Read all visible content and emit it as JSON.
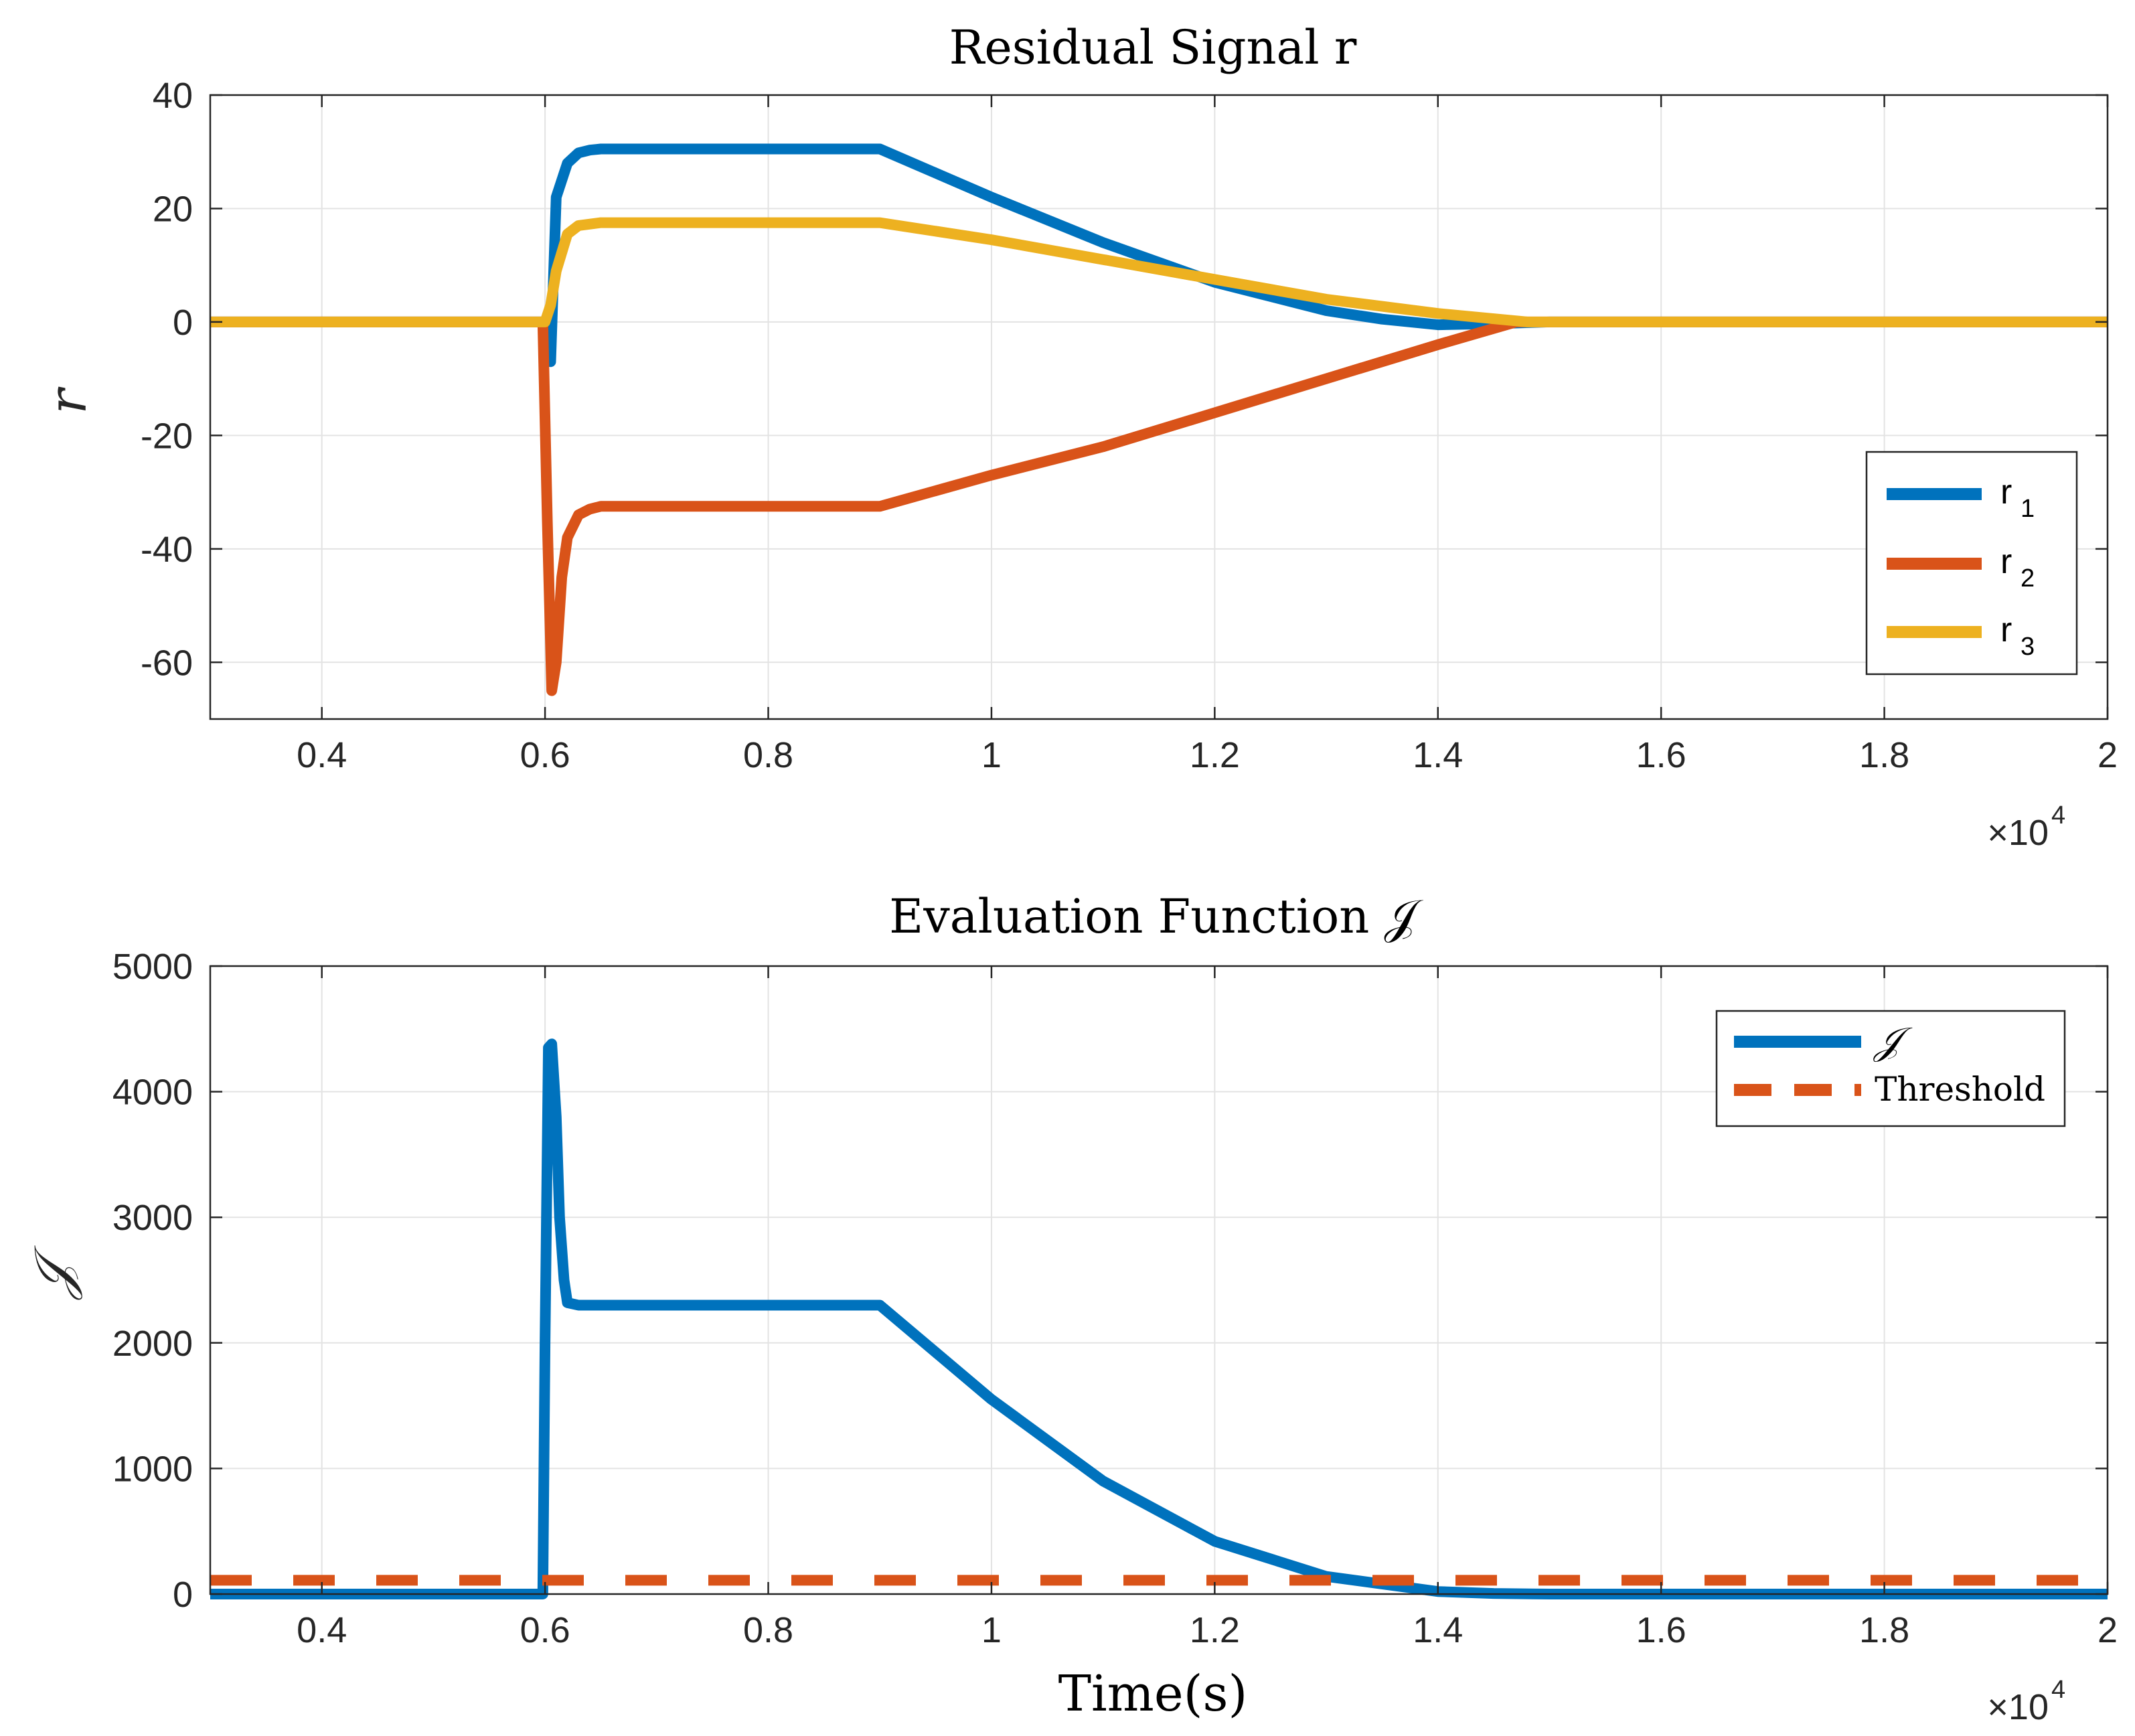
{
  "colors": {
    "blue": "#0072BD",
    "orange": "#D95319",
    "yellow": "#EDB120",
    "axis": "#262626",
    "grid": "#E3E3E3"
  },
  "chart_data": [
    {
      "type": "line",
      "title": "Residual Signal r",
      "xlabel": "",
      "ylabel": "r",
      "x_exponent_label": "×10",
      "x_exponent_power": "4",
      "xlim": [
        0.3,
        2.0
      ],
      "ylim": [
        -70,
        40
      ],
      "xticks": [
        0.4,
        0.6,
        0.8,
        1.0,
        1.2,
        1.4,
        1.6,
        1.8,
        2.0
      ],
      "xtick_labels": [
        "0.4",
        "0.6",
        "0.8",
        "1",
        "1.2",
        "1.4",
        "1.6",
        "1.8",
        "2"
      ],
      "yticks": [
        40,
        20,
        0,
        -20,
        -40,
        -60
      ],
      "ytick_labels": [
        "40",
        "20",
        "0",
        "-20",
        "-40",
        "-60"
      ],
      "grid": true,
      "legend_location": "east",
      "series": [
        {
          "name": "r",
          "subscript": "1",
          "color_key": "blue",
          "x": [
            0.3,
            0.599,
            0.601,
            0.605,
            0.61,
            0.62,
            0.63,
            0.64,
            0.65,
            0.9,
            1.0,
            1.1,
            1.2,
            1.3,
            1.35,
            1.4,
            1.45,
            1.5,
            2.0
          ],
          "y": [
            0,
            0,
            -2,
            -7,
            22,
            28,
            29.8,
            30.3,
            30.5,
            30.5,
            22,
            14,
            7,
            2,
            0.5,
            -0.5,
            -0.3,
            0,
            0
          ]
        },
        {
          "name": "r",
          "subscript": "2",
          "color_key": "orange",
          "x": [
            0.3,
            0.598,
            0.602,
            0.606,
            0.61,
            0.615,
            0.62,
            0.63,
            0.64,
            0.65,
            0.9,
            1.0,
            1.1,
            1.2,
            1.3,
            1.4,
            1.47,
            2.0
          ],
          "y": [
            0,
            0,
            -35,
            -65,
            -60,
            -45,
            -38,
            -34,
            -33,
            -32.5,
            -32.5,
            -27,
            -22,
            -16,
            -10,
            -4,
            0,
            0
          ]
        },
        {
          "name": "r",
          "subscript": "3",
          "color_key": "yellow",
          "x": [
            0.3,
            0.6,
            0.605,
            0.61,
            0.62,
            0.63,
            0.65,
            0.9,
            1.0,
            1.1,
            1.2,
            1.3,
            1.4,
            1.48,
            2.0
          ],
          "y": [
            0,
            0,
            3,
            9,
            15.5,
            17,
            17.5,
            17.5,
            14.5,
            11,
            7.5,
            4,
            1.5,
            0,
            0
          ]
        }
      ]
    },
    {
      "type": "line",
      "title": "Evaluation Function 𝒥",
      "xlabel": "Time(s)",
      "ylabel": "𝒥",
      "x_exponent_label": "×10",
      "x_exponent_power": "4",
      "xlim": [
        0.3,
        2.0
      ],
      "ylim": [
        0,
        5000
      ],
      "xticks": [
        0.4,
        0.6,
        0.8,
        1.0,
        1.2,
        1.4,
        1.6,
        1.8,
        2.0
      ],
      "xtick_labels": [
        "0.4",
        "0.6",
        "0.8",
        "1",
        "1.2",
        "1.4",
        "1.6",
        "1.8",
        "2"
      ],
      "yticks": [
        5000,
        4000,
        3000,
        2000,
        1000,
        0
      ],
      "ytick_labels": [
        "5000",
        "4000",
        "3000",
        "2000",
        "1000",
        "0"
      ],
      "grid": true,
      "legend_location": "top-right",
      "series": [
        {
          "name": "𝒥",
          "color_key": "blue",
          "style": "solid",
          "x": [
            0.3,
            0.598,
            0.6,
            0.603,
            0.606,
            0.61,
            0.613,
            0.617,
            0.62,
            0.63,
            0.9,
            1.0,
            1.1,
            1.2,
            1.3,
            1.4,
            1.45,
            1.5,
            2.0
          ],
          "y": [
            0,
            0,
            2000,
            4350,
            4380,
            3800,
            3000,
            2500,
            2320,
            2300,
            2300,
            1550,
            900,
            420,
            140,
            20,
            5,
            0,
            0
          ]
        },
        {
          "name": "Threshold",
          "color_key": "orange",
          "style": "dashed",
          "x": [
            0.3,
            2.0
          ],
          "y": [
            110,
            110
          ]
        }
      ]
    }
  ]
}
